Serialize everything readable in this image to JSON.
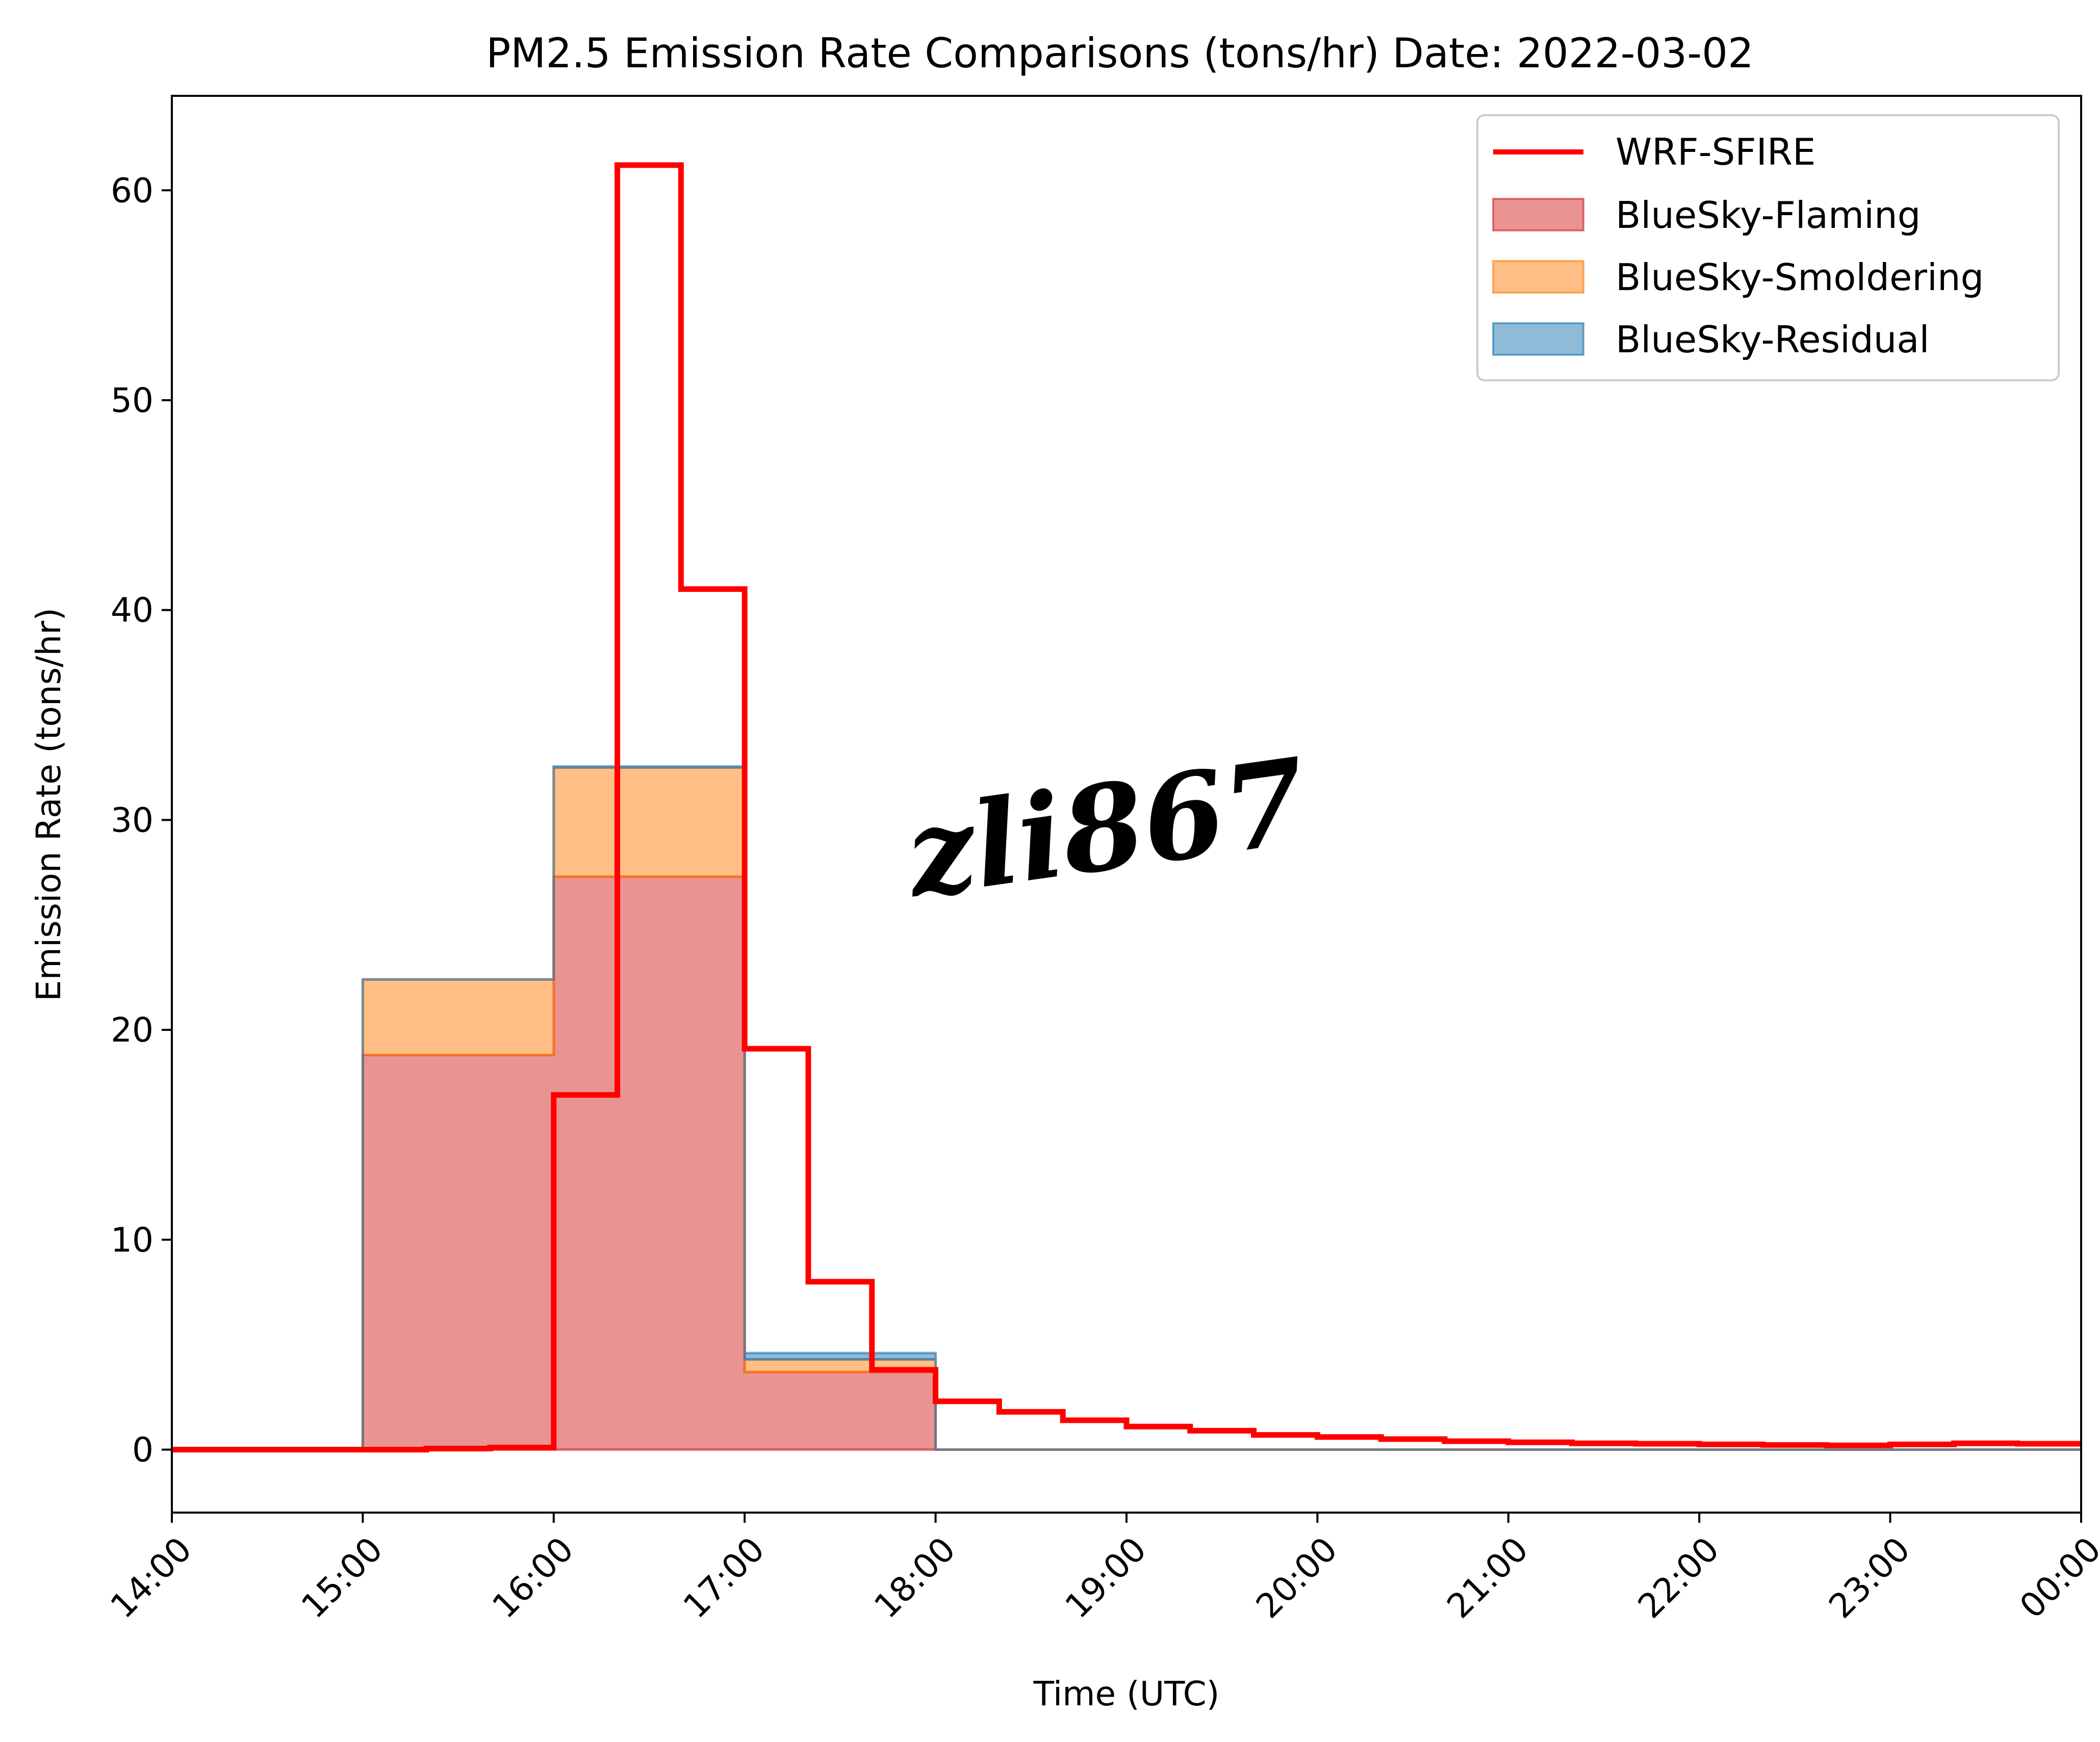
{
  "chart_data": {
    "type": "area",
    "title": "PM2.5 Emission Rate Comparisons (tons/hr) Date: 2022-03-02",
    "xlabel": "Time (UTC)",
    "ylabel": "Emission Rate (tons/hr)",
    "x_ticks": [
      "14:00",
      "15:00",
      "16:00",
      "17:00",
      "18:00",
      "19:00",
      "20:00",
      "21:00",
      "22:00",
      "23:00",
      "00:00"
    ],
    "xlim": [
      "14:00",
      "00:00"
    ],
    "ylim": [
      -3,
      64.5
    ],
    "y_ticks": [
      0,
      10,
      20,
      30,
      40,
      50,
      60
    ],
    "grid": false,
    "legend_placement": "top-right",
    "bluesky": {
      "hour_starts": [
        "14:00",
        "15:00",
        "16:00",
        "17:00",
        "18:00",
        "19:00",
        "20:00",
        "21:00",
        "22:00",
        "23:00"
      ],
      "hour_ends": [
        "15:00",
        "16:00",
        "17:00",
        "18:00",
        "19:00",
        "20:00",
        "21:00",
        "22:00",
        "23:00",
        "00:00"
      ]
    },
    "series": [
      {
        "name": "WRF-SFIRE",
        "kind": "step-line",
        "color": "#ff0000",
        "x": [
          "14:00",
          "14:20",
          "14:40",
          "15:00",
          "15:20",
          "15:40",
          "16:00",
          "16:20",
          "16:40",
          "17:00",
          "17:20",
          "17:40",
          "18:00",
          "18:20",
          "18:40",
          "19:00",
          "19:20",
          "19:40",
          "20:00",
          "20:20",
          "20:40",
          "21:00",
          "21:20",
          "21:40",
          "22:00",
          "22:20",
          "22:40",
          "23:00",
          "23:20",
          "23:40"
        ],
        "x_end": "23:40",
        "values": [
          0,
          0,
          0,
          0,
          0.05,
          0.1,
          16.9,
          61.2,
          41.0,
          19.1,
          8.0,
          3.8,
          2.3,
          1.8,
          1.4,
          1.1,
          0.9,
          0.7,
          0.6,
          0.5,
          0.4,
          0.35,
          0.3,
          0.28,
          0.25,
          0.22,
          0.2,
          0.25,
          0.3,
          0.28
        ]
      },
      {
        "name": "BlueSky-Flaming",
        "kind": "stacked-step-area",
        "color": "#d62728",
        "values": [
          0,
          18.8,
          27.3,
          3.7,
          0,
          0,
          0,
          0,
          0,
          0
        ]
      },
      {
        "name": "BlueSky-Smoldering",
        "kind": "stacked-step-area",
        "color": "#ff7f0e",
        "values": [
          0,
          3.6,
          5.2,
          0.6,
          0,
          0,
          0,
          0,
          0,
          0
        ]
      },
      {
        "name": "BlueSky-Residual",
        "kind": "stacked-step-area",
        "color": "#1f77b4",
        "values": [
          0,
          0,
          0.05,
          0.3,
          0,
          0,
          0,
          0,
          0,
          0
        ]
      }
    ]
  },
  "watermark": {
    "text": "zli867"
  }
}
